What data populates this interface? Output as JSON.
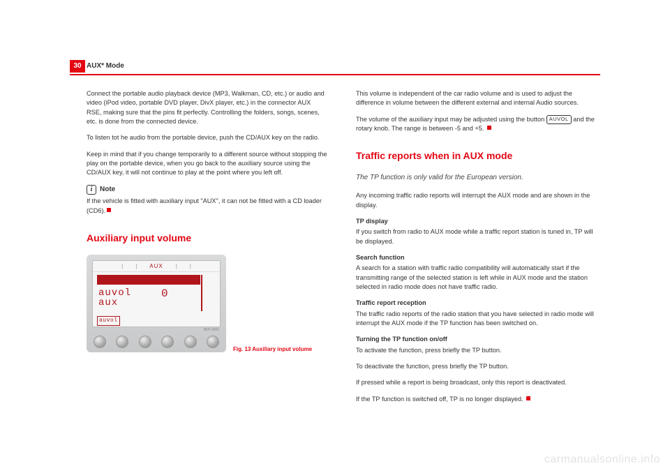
{
  "page_number": "30",
  "header": "AUX* Mode",
  "left": {
    "p1": "Connect the portable audio playback device (MP3, Walkman, CD, etc.) or audio and video (iPod video, portable DVD player, DivX player, etc.) in the connector AUX RSE, making sure that the pins fit perfectly. Controlling the folders, songs, scenes, etc. is done from the connected device.",
    "p2": "To listen tot he audio from the portable device, push the CD/AUX key on the radio.",
    "p3": "Keep in mind that if you change temporarily to a different source without stopping the play on the portable device, when you go back to the auxiliary source using the CD/AUX key, it will not continue to play at the point where you left off.",
    "note_label": "Note",
    "note_text": "If the vehicle is fitted with auxiliary input \"AUX\", it can not be fitted with a CD loader (CD6).",
    "h2": "Auxiliary input volume",
    "fig_code": "B5P-0300",
    "fig_caption": "Fig. 13  Auxiliary input volume",
    "screen": {
      "tab_aux": "AUX",
      "pipe": "|",
      "auvol": "auvol",
      "zero": "0",
      "aux": "aux",
      "btn": "auvol"
    }
  },
  "right": {
    "p1": "This volume is independent of the car radio volume and is used to adjust the difference in volume between the different external and internal Audio sources.",
    "p2a": "The volume of the auxiliary input may be adjusted using the button ",
    "p2_button": "AUVOL",
    "p2b": " and the rotary knob. The range is between -5 and +5.",
    "h2": "Traffic reports when in AUX mode",
    "sub": "The TP function is only valid for the European version.",
    "p3": "Any incoming traffic radio reports will interrupt the AUX mode and are shown in the display.",
    "b1": "TP display",
    "p4": "If you switch from radio to AUX mode while a traffic report station is tuned in, TP will be displayed.",
    "b2": "Search function",
    "p5": "A search for a station with traffic radio compatibility will automatically start if the transmitting range of the selected station is left while in AUX mode and the station selected in radio mode does not have traffic radio.",
    "b3": "Traffic report reception",
    "p6": "The traffic radio reports of the radio station that you have selected in radio mode will interrupt the AUX mode if the TP function has been switched on.",
    "b4": "Turning the TP function on/off",
    "p7": "To activate the function, press briefly the TP button.",
    "p8": "To deactivate the function, press briefly the TP button.",
    "p9": "If pressed while a report is being broadcast, only this report is deactivated.",
    "p10": "If the TP function is switched off, TP is no longer displayed."
  },
  "watermark": "carmanualsonline.info"
}
